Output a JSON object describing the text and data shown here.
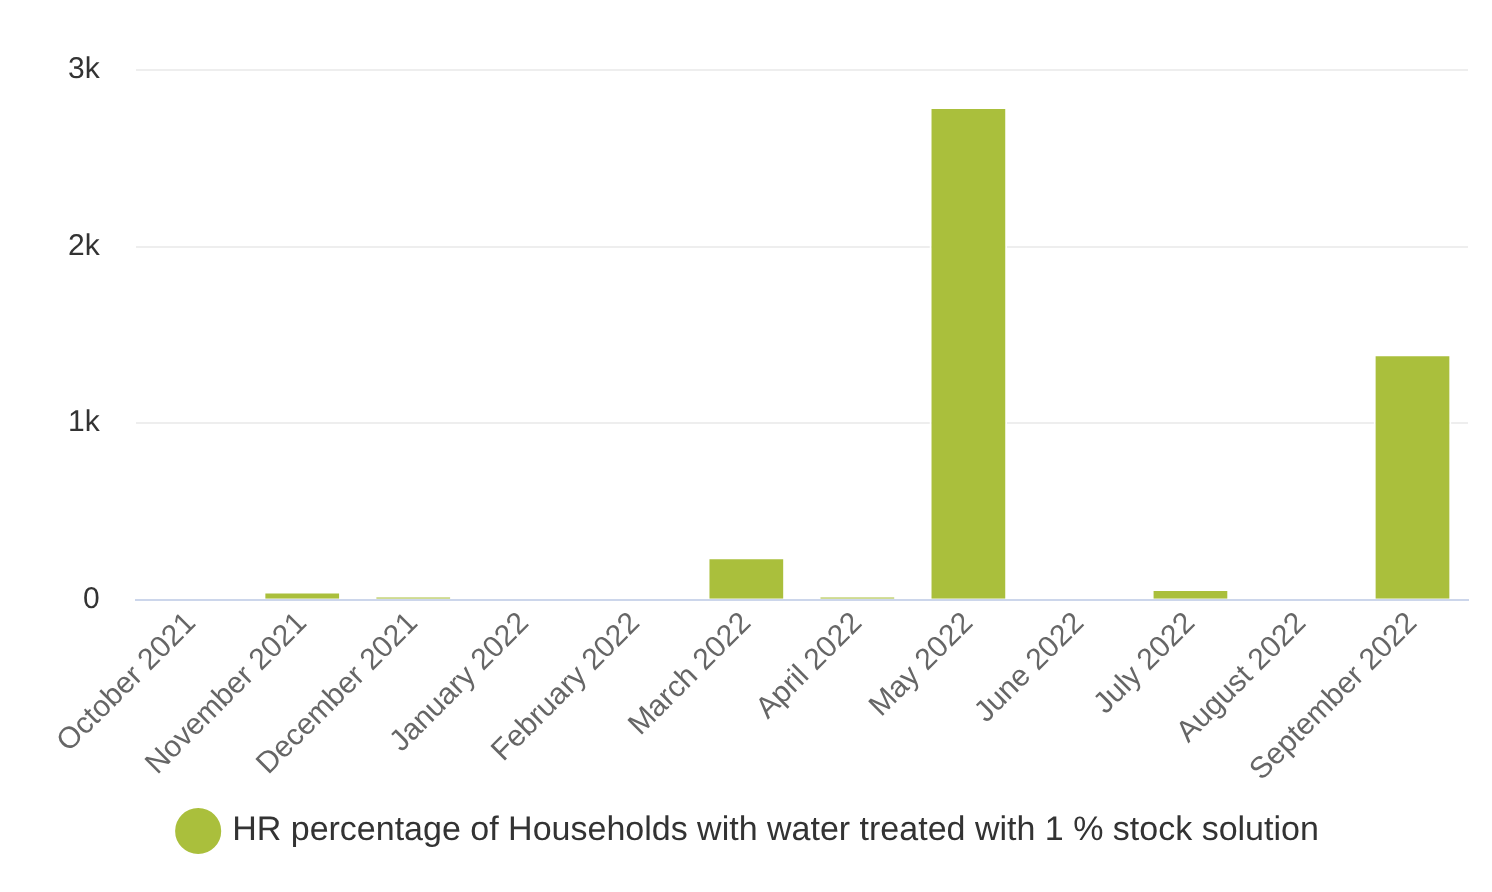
{
  "chart_data": {
    "type": "bar",
    "categories": [
      "October 2021",
      "November 2021",
      "December 2021",
      "January 2022",
      "February 2022",
      "March 2022",
      "April 2022",
      "May 2022",
      "June 2022",
      "July 2022",
      "August 2022",
      "September 2022"
    ],
    "series": [
      {
        "name": "HR percentage of Households with water treated with 1 % stock solution",
        "color": "#aabf3c",
        "values": [
          0,
          46,
          18,
          0,
          0,
          240,
          18,
          2790,
          0,
          60,
          0,
          1390
        ]
      }
    ],
    "ylim": [
      0,
      3000
    ],
    "yticks": [
      0,
      {
        "value": 1000,
        "label": "1k"
      },
      {
        "value": 2000,
        "label": "2k"
      },
      {
        "value": 3000,
        "label": "3k"
      }
    ],
    "grid": "y",
    "legend": "bottom"
  }
}
